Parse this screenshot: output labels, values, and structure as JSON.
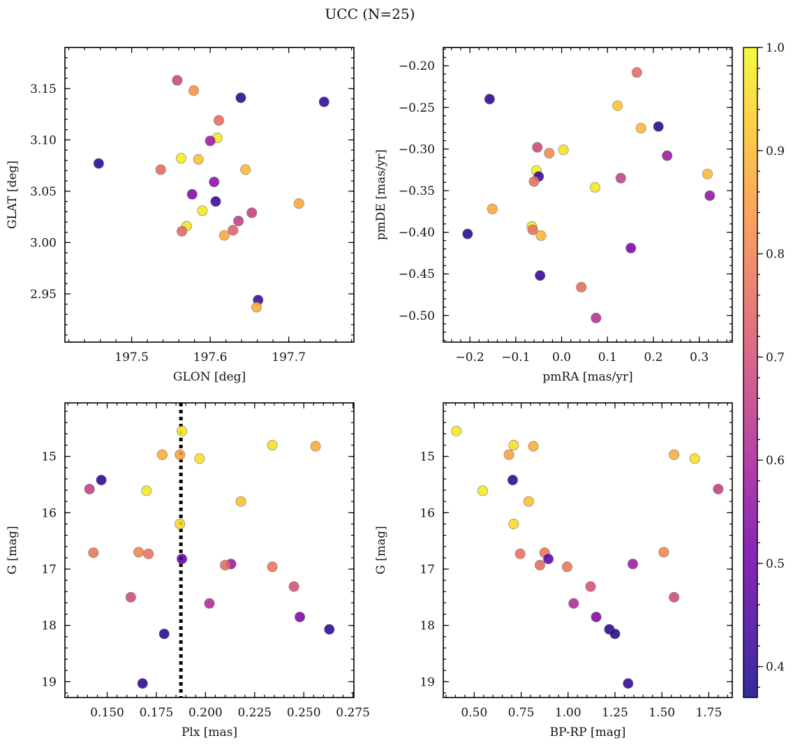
{
  "figure": {
    "title": "UCC (N=25)",
    "colorbar": {
      "colormap": "plasma",
      "range": [
        0.37,
        1.0
      ],
      "ticks": [
        0.4,
        0.5,
        0.6,
        0.7,
        0.8,
        0.9,
        1.0
      ],
      "tick_labels": [
        "0.4",
        "0.5",
        "0.6",
        "0.7",
        "0.8",
        "0.9",
        "1.0"
      ],
      "colors": [
        "#0d0887",
        "#46039f",
        "#7201a8",
        "#9c179e",
        "#bd3786",
        "#d8576b",
        "#ed7953",
        "#fb9f3a",
        "#fdca26",
        "#f0f921"
      ]
    }
  },
  "chart_data": [
    {
      "type": "scatter",
      "panel": "top-left",
      "xlabel": "GLON [deg]",
      "ylabel": "GLAT [deg]",
      "xlim": [
        197.415,
        197.783
      ],
      "ylim": [
        2.903,
        3.19
      ],
      "xticks": [
        197.5,
        197.6,
        197.7
      ],
      "xtick_labels": [
        "197.5",
        "197.6",
        "197.7"
      ],
      "yticks": [
        2.95,
        3.0,
        3.05,
        3.1,
        3.15
      ],
      "ytick_labels": [
        "2.95",
        "3.00",
        "3.05",
        "3.10",
        "3.15"
      ],
      "points": [
        {
          "x": 197.558,
          "y": 3.158,
          "c": 0.68
        },
        {
          "x": 197.579,
          "y": 3.148,
          "c": 0.83
        },
        {
          "x": 197.639,
          "y": 3.141,
          "c": 0.4
        },
        {
          "x": 197.745,
          "y": 3.137,
          "c": 0.41
        },
        {
          "x": 197.611,
          "y": 3.119,
          "c": 0.76
        },
        {
          "x": 197.609,
          "y": 3.102,
          "c": 0.97
        },
        {
          "x": 197.6,
          "y": 3.099,
          "c": 0.58
        },
        {
          "x": 197.563,
          "y": 3.082,
          "c": 0.98
        },
        {
          "x": 197.585,
          "y": 3.081,
          "c": 0.91
        },
        {
          "x": 197.458,
          "y": 3.077,
          "c": 0.4
        },
        {
          "x": 197.537,
          "y": 3.071,
          "c": 0.76
        },
        {
          "x": 197.645,
          "y": 3.071,
          "c": 0.9
        },
        {
          "x": 197.605,
          "y": 3.059,
          "c": 0.55
        },
        {
          "x": 197.577,
          "y": 3.047,
          "c": 0.53
        },
        {
          "x": 197.607,
          "y": 3.04,
          "c": 0.42
        },
        {
          "x": 197.713,
          "y": 3.038,
          "c": 0.87
        },
        {
          "x": 197.59,
          "y": 3.031,
          "c": 0.97
        },
        {
          "x": 197.653,
          "y": 3.029,
          "c": 0.67
        },
        {
          "x": 197.636,
          "y": 3.021,
          "c": 0.66
        },
        {
          "x": 197.57,
          "y": 3.016,
          "c": 0.96
        },
        {
          "x": 197.629,
          "y": 3.012,
          "c": 0.74
        },
        {
          "x": 197.564,
          "y": 3.011,
          "c": 0.75
        },
        {
          "x": 197.618,
          "y": 3.007,
          "c": 0.87
        },
        {
          "x": 197.661,
          "y": 2.944,
          "c": 0.43
        },
        {
          "x": 197.659,
          "y": 2.937,
          "c": 0.88
        }
      ]
    },
    {
      "type": "scatter",
      "panel": "top-right",
      "xlabel": "pmRA [mas/yr]",
      "ylabel": "pmDE [mas/yr]",
      "xlim": [
        -0.258,
        0.372
      ],
      "ylim": [
        -0.532,
        -0.178
      ],
      "xticks": [
        -0.2,
        -0.1,
        0.0,
        0.1,
        0.2,
        0.3
      ],
      "xtick_labels": [
        "−0.2",
        "−0.1",
        "0.0",
        "0.1",
        "0.2",
        "0.3"
      ],
      "yticks": [
        -0.5,
        -0.45,
        -0.4,
        -0.35,
        -0.3,
        -0.25,
        -0.2
      ],
      "ytick_labels": [
        "−0.50",
        "−0.45",
        "−0.40",
        "−0.35",
        "−0.30",
        "−0.25",
        "−0.20"
      ],
      "points": [
        {
          "x": 0.164,
          "y": -0.208,
          "c": 0.76
        },
        {
          "x": -0.157,
          "y": -0.24,
          "c": 0.41
        },
        {
          "x": 0.122,
          "y": -0.248,
          "c": 0.92
        },
        {
          "x": 0.211,
          "y": -0.273,
          "c": 0.4
        },
        {
          "x": 0.173,
          "y": -0.275,
          "c": 0.9
        },
        {
          "x": -0.053,
          "y": -0.298,
          "c": 0.68
        },
        {
          "x": 0.004,
          "y": -0.301,
          "c": 0.96
        },
        {
          "x": -0.027,
          "y": -0.305,
          "c": 0.82
        },
        {
          "x": 0.23,
          "y": -0.308,
          "c": 0.58
        },
        {
          "x": -0.055,
          "y": -0.326,
          "c": 0.98
        },
        {
          "x": 0.318,
          "y": -0.33,
          "c": 0.9
        },
        {
          "x": -0.05,
          "y": -0.333,
          "c": 0.42
        },
        {
          "x": 0.129,
          "y": -0.335,
          "c": 0.67
        },
        {
          "x": -0.06,
          "y": -0.339,
          "c": 0.77
        },
        {
          "x": 0.073,
          "y": -0.346,
          "c": 0.97
        },
        {
          "x": 0.323,
          "y": -0.356,
          "c": 0.56
        },
        {
          "x": -0.151,
          "y": -0.372,
          "c": 0.87
        },
        {
          "x": -0.065,
          "y": -0.393,
          "c": 0.97
        },
        {
          "x": -0.063,
          "y": -0.397,
          "c": 0.77
        },
        {
          "x": -0.205,
          "y": -0.402,
          "c": 0.4
        },
        {
          "x": -0.045,
          "y": -0.404,
          "c": 0.9
        },
        {
          "x": 0.151,
          "y": -0.419,
          "c": 0.52
        },
        {
          "x": -0.047,
          "y": -0.452,
          "c": 0.41
        },
        {
          "x": 0.043,
          "y": -0.466,
          "c": 0.76
        },
        {
          "x": 0.075,
          "y": -0.503,
          "c": 0.63
        }
      ]
    },
    {
      "type": "scatter",
      "panel": "bottom-left",
      "xlabel": "Plx [mas]",
      "ylabel": "G [mag]",
      "xlim": [
        0.1285,
        0.2755
      ],
      "ylim": [
        19.28,
        14.05
      ],
      "y_inverted": true,
      "xticks": [
        0.15,
        0.175,
        0.2,
        0.225,
        0.25,
        0.275
      ],
      "xtick_labels": [
        "0.150",
        "0.175",
        "0.200",
        "0.225",
        "0.250",
        "0.275"
      ],
      "yticks": [
        15,
        16,
        17,
        18,
        19
      ],
      "ytick_labels": [
        "15",
        "16",
        "17",
        "18",
        "19"
      ],
      "vline": {
        "x": 0.1875,
        "style": "dotted",
        "color": "#000000"
      },
      "points": [
        {
          "x": 0.188,
          "y": 14.55,
          "c": 0.97
        },
        {
          "x": 0.234,
          "y": 14.8,
          "c": 0.96
        },
        {
          "x": 0.256,
          "y": 14.82,
          "c": 0.88
        },
        {
          "x": 0.178,
          "y": 14.97,
          "c": 0.88
        },
        {
          "x": 0.187,
          "y": 14.97,
          "c": 0.86
        },
        {
          "x": 0.197,
          "y": 15.04,
          "c": 0.96
        },
        {
          "x": 0.147,
          "y": 15.42,
          "c": 0.41
        },
        {
          "x": 0.141,
          "y": 15.58,
          "c": 0.66
        },
        {
          "x": 0.17,
          "y": 15.61,
          "c": 0.97
        },
        {
          "x": 0.218,
          "y": 15.8,
          "c": 0.91
        },
        {
          "x": 0.187,
          "y": 16.2,
          "c": 0.95
        },
        {
          "x": 0.166,
          "y": 16.7,
          "c": 0.81
        },
        {
          "x": 0.143,
          "y": 16.71,
          "c": 0.78
        },
        {
          "x": 0.171,
          "y": 16.73,
          "c": 0.77
        },
        {
          "x": 0.188,
          "y": 16.82,
          "c": 0.48
        },
        {
          "x": 0.213,
          "y": 16.91,
          "c": 0.58
        },
        {
          "x": 0.21,
          "y": 16.93,
          "c": 0.76
        },
        {
          "x": 0.234,
          "y": 16.96,
          "c": 0.78
        },
        {
          "x": 0.245,
          "y": 17.31,
          "c": 0.71
        },
        {
          "x": 0.162,
          "y": 17.5,
          "c": 0.69
        },
        {
          "x": 0.202,
          "y": 17.61,
          "c": 0.62
        },
        {
          "x": 0.248,
          "y": 17.85,
          "c": 0.53
        },
        {
          "x": 0.263,
          "y": 18.07,
          "c": 0.41
        },
        {
          "x": 0.179,
          "y": 18.15,
          "c": 0.4
        },
        {
          "x": 0.168,
          "y": 19.03,
          "c": 0.41
        }
      ]
    },
    {
      "type": "scatter",
      "panel": "bottom-right",
      "xlabel": "BP-RP [mag]",
      "ylabel": "G [mag]",
      "xlim": [
        0.335,
        1.875
      ],
      "ylim": [
        19.28,
        14.05
      ],
      "y_inverted": true,
      "xticks": [
        0.5,
        0.75,
        1.0,
        1.25,
        1.5,
        1.75
      ],
      "xtick_labels": [
        "0.50",
        "0.75",
        "1.00",
        "1.25",
        "1.50",
        "1.75"
      ],
      "yticks": [
        15,
        16,
        17,
        18,
        19
      ],
      "ytick_labels": [
        "15",
        "16",
        "17",
        "18",
        "19"
      ],
      "points": [
        {
          "x": 0.405,
          "y": 14.55,
          "c": 0.97
        },
        {
          "x": 0.71,
          "y": 14.8,
          "c": 0.96
        },
        {
          "x": 0.815,
          "y": 14.82,
          "c": 0.88
        },
        {
          "x": 0.685,
          "y": 14.97,
          "c": 0.86
        },
        {
          "x": 1.565,
          "y": 14.97,
          "c": 0.88
        },
        {
          "x": 1.675,
          "y": 15.04,
          "c": 0.96
        },
        {
          "x": 0.705,
          "y": 15.42,
          "c": 0.41
        },
        {
          "x": 1.8,
          "y": 15.58,
          "c": 0.66
        },
        {
          "x": 0.545,
          "y": 15.61,
          "c": 0.97
        },
        {
          "x": 0.79,
          "y": 15.8,
          "c": 0.91
        },
        {
          "x": 0.71,
          "y": 16.2,
          "c": 0.95
        },
        {
          "x": 1.51,
          "y": 16.7,
          "c": 0.81
        },
        {
          "x": 0.875,
          "y": 16.71,
          "c": 0.78
        },
        {
          "x": 0.745,
          "y": 16.73,
          "c": 0.77
        },
        {
          "x": 0.895,
          "y": 16.82,
          "c": 0.48
        },
        {
          "x": 1.345,
          "y": 16.91,
          "c": 0.58
        },
        {
          "x": 0.85,
          "y": 16.93,
          "c": 0.76
        },
        {
          "x": 0.995,
          "y": 16.96,
          "c": 0.78
        },
        {
          "x": 1.12,
          "y": 17.31,
          "c": 0.71
        },
        {
          "x": 1.565,
          "y": 17.5,
          "c": 0.69
        },
        {
          "x": 1.03,
          "y": 17.61,
          "c": 0.62
        },
        {
          "x": 1.15,
          "y": 17.85,
          "c": 0.53
        },
        {
          "x": 1.22,
          "y": 18.07,
          "c": 0.41
        },
        {
          "x": 1.25,
          "y": 18.15,
          "c": 0.4
        },
        {
          "x": 1.32,
          "y": 19.03,
          "c": 0.41
        }
      ]
    }
  ]
}
